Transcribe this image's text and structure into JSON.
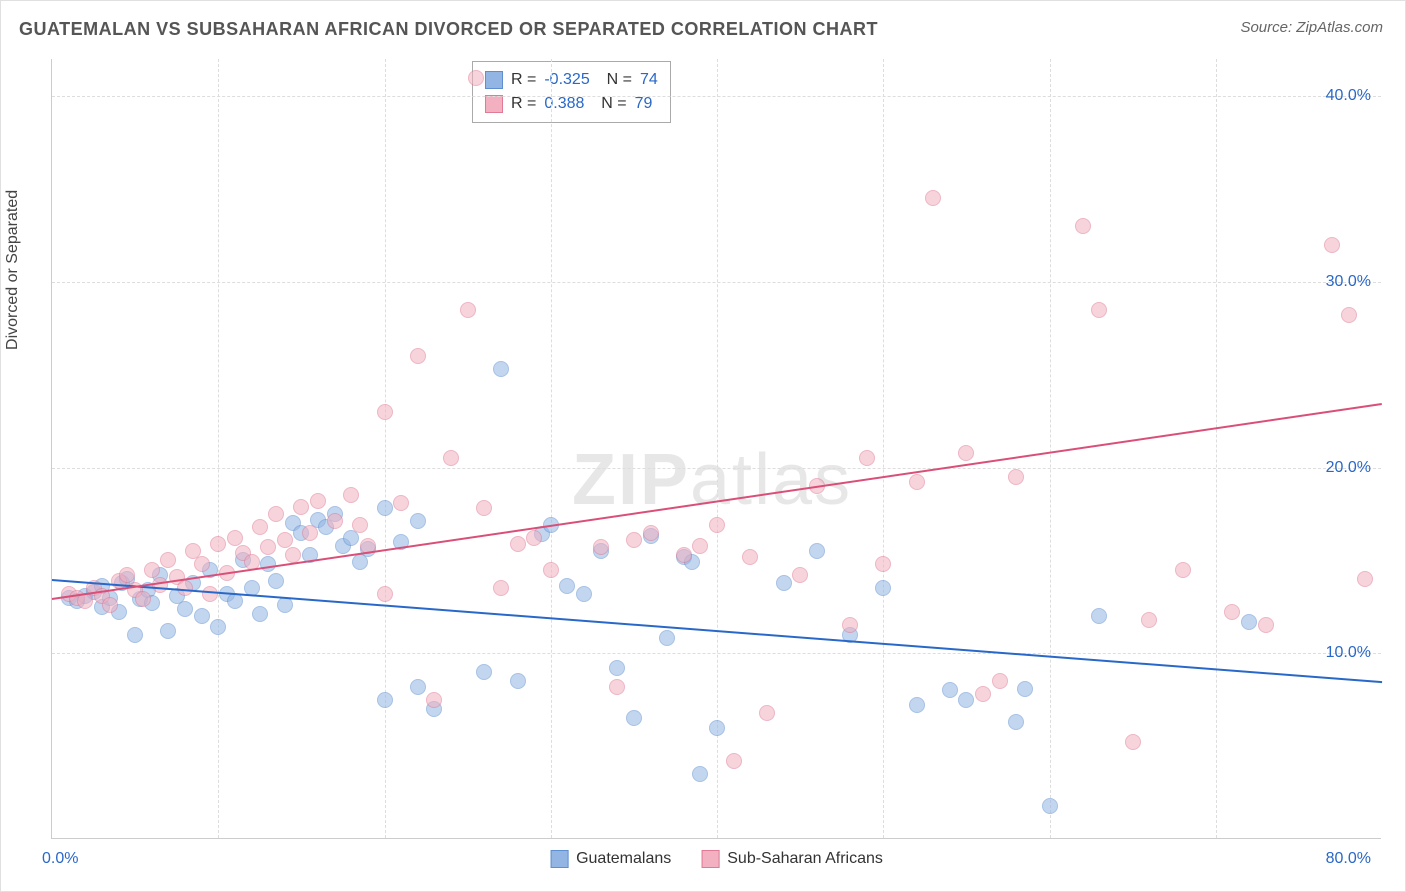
{
  "title": "GUATEMALAN VS SUBSAHARAN AFRICAN DIVORCED OR SEPARATED CORRELATION CHART",
  "source": "Source: ZipAtlas.com",
  "watermark_bold": "ZIP",
  "watermark_light": "atlas",
  "yaxis_title": "Divorced or Separated",
  "chart": {
    "type": "scatter",
    "xlim": [
      0,
      80
    ],
    "ylim": [
      0,
      42
    ],
    "yticks": [
      10,
      20,
      30,
      40
    ],
    "ytick_labels": [
      "10.0%",
      "20.0%",
      "30.0%",
      "40.0%"
    ],
    "xtick_start": "0.0%",
    "xtick_end": "80.0%",
    "xgrid_positions": [
      10,
      20,
      30,
      40,
      50,
      60,
      70
    ],
    "background_color": "#ffffff",
    "grid_color": "#dddddd",
    "axis_color": "#cccccc",
    "tick_label_color": "#2968c8",
    "marker_size": 16,
    "marker_opacity": 0.55,
    "series": [
      {
        "name": "Guatemalans",
        "fill_color": "#93b5e3",
        "stroke_color": "#5f8fd0",
        "trend_color": "#2968c8",
        "trend_width": 2,
        "R": "-0.325",
        "N": "74",
        "trend": {
          "x1": 0,
          "y1": 14.0,
          "x2": 80,
          "y2": 8.5
        },
        "points": [
          [
            1,
            13
          ],
          [
            1.5,
            12.8
          ],
          [
            2,
            13.1
          ],
          [
            2.5,
            13.3
          ],
          [
            3,
            12.5
          ],
          [
            3,
            13.6
          ],
          [
            3.5,
            13
          ],
          [
            4,
            12.2
          ],
          [
            4.2,
            13.8
          ],
          [
            4.5,
            14
          ],
          [
            5,
            11
          ],
          [
            5.3,
            12.9
          ],
          [
            5.8,
            13.4
          ],
          [
            6,
            12.7
          ],
          [
            6.5,
            14.2
          ],
          [
            7,
            11.2
          ],
          [
            7.5,
            13.1
          ],
          [
            8,
            12.4
          ],
          [
            8.5,
            13.8
          ],
          [
            9,
            12
          ],
          [
            9.5,
            14.5
          ],
          [
            10,
            11.4
          ],
          [
            10.5,
            13.2
          ],
          [
            11,
            12.8
          ],
          [
            11.5,
            15
          ],
          [
            12,
            13.5
          ],
          [
            12.5,
            12.1
          ],
          [
            13,
            14.8
          ],
          [
            13.5,
            13.9
          ],
          [
            14,
            12.6
          ],
          [
            14.5,
            17
          ],
          [
            15,
            16.5
          ],
          [
            15.5,
            15.3
          ],
          [
            16,
            17.2
          ],
          [
            16.5,
            16.8
          ],
          [
            17,
            17.5
          ],
          [
            17.5,
            15.8
          ],
          [
            18,
            16.2
          ],
          [
            18.5,
            14.9
          ],
          [
            19,
            15.6
          ],
          [
            20,
            17.8
          ],
          [
            20,
            7.5
          ],
          [
            21,
            16
          ],
          [
            22,
            17.1
          ],
          [
            22,
            8.2
          ],
          [
            23,
            7
          ],
          [
            26,
            9
          ],
          [
            27,
            25.3
          ],
          [
            28,
            8.5
          ],
          [
            29.5,
            16.4
          ],
          [
            30,
            16.9
          ],
          [
            31,
            13.6
          ],
          [
            32,
            13.2
          ],
          [
            33,
            15.5
          ],
          [
            34,
            9.2
          ],
          [
            35,
            6.5
          ],
          [
            36,
            16.3
          ],
          [
            37,
            10.8
          ],
          [
            38,
            15.2
          ],
          [
            38.5,
            14.9
          ],
          [
            39,
            3.5
          ],
          [
            40,
            6
          ],
          [
            44,
            13.8
          ],
          [
            46,
            15.5
          ],
          [
            48,
            11
          ],
          [
            50,
            13.5
          ],
          [
            52,
            7.2
          ],
          [
            54,
            8
          ],
          [
            55,
            7.5
          ],
          [
            58,
            6.3
          ],
          [
            58.5,
            8.1
          ],
          [
            60,
            1.8
          ],
          [
            63,
            12
          ],
          [
            72,
            11.7
          ]
        ]
      },
      {
        "name": "Sub-Saharan Africans",
        "fill_color": "#f2b0c0",
        "stroke_color": "#e07a95",
        "trend_color": "#d94f78",
        "trend_width": 2,
        "R": "0.388",
        "N": "79",
        "trend": {
          "x1": 0,
          "y1": 13.0,
          "x2": 80,
          "y2": 23.5
        },
        "points": [
          [
            1,
            13.2
          ],
          [
            1.5,
            13
          ],
          [
            2,
            12.8
          ],
          [
            2.5,
            13.5
          ],
          [
            3,
            13.1
          ],
          [
            3.5,
            12.6
          ],
          [
            4,
            13.9
          ],
          [
            4.5,
            14.2
          ],
          [
            5,
            13.4
          ],
          [
            5.5,
            12.9
          ],
          [
            6,
            14.5
          ],
          [
            6.5,
            13.7
          ],
          [
            7,
            15
          ],
          [
            7.5,
            14.1
          ],
          [
            8,
            13.5
          ],
          [
            8.5,
            15.5
          ],
          [
            9,
            14.8
          ],
          [
            9.5,
            13.2
          ],
          [
            10,
            15.9
          ],
          [
            10.5,
            14.3
          ],
          [
            11,
            16.2
          ],
          [
            11.5,
            15.4
          ],
          [
            12,
            14.9
          ],
          [
            12.5,
            16.8
          ],
          [
            13,
            15.7
          ],
          [
            13.5,
            17.5
          ],
          [
            14,
            16.1
          ],
          [
            14.5,
            15.3
          ],
          [
            15,
            17.9
          ],
          [
            15.5,
            16.5
          ],
          [
            16,
            18.2
          ],
          [
            17,
            17.1
          ],
          [
            18,
            18.5
          ],
          [
            18.5,
            16.9
          ],
          [
            19,
            15.8
          ],
          [
            20,
            13.2
          ],
          [
            20,
            23
          ],
          [
            21,
            18.1
          ],
          [
            22,
            26
          ],
          [
            23,
            7.5
          ],
          [
            24,
            20.5
          ],
          [
            25,
            28.5
          ],
          [
            25.5,
            41
          ],
          [
            26,
            17.8
          ],
          [
            27,
            13.5
          ],
          [
            28,
            15.9
          ],
          [
            29,
            16.2
          ],
          [
            30,
            14.5
          ],
          [
            33,
            15.7
          ],
          [
            34,
            8.2
          ],
          [
            35,
            16.1
          ],
          [
            36,
            16.5
          ],
          [
            38,
            15.3
          ],
          [
            39,
            15.8
          ],
          [
            40,
            16.9
          ],
          [
            41,
            4.2
          ],
          [
            42,
            15.2
          ],
          [
            43,
            6.8
          ],
          [
            45,
            14.2
          ],
          [
            46,
            19
          ],
          [
            48,
            11.5
          ],
          [
            49,
            20.5
          ],
          [
            50,
            14.8
          ],
          [
            52,
            19.2
          ],
          [
            53,
            34.5
          ],
          [
            55,
            20.8
          ],
          [
            56,
            7.8
          ],
          [
            57,
            8.5
          ],
          [
            58,
            19.5
          ],
          [
            62,
            33
          ],
          [
            63,
            28.5
          ],
          [
            65,
            5.2
          ],
          [
            66,
            11.8
          ],
          [
            68,
            14.5
          ],
          [
            71,
            12.2
          ],
          [
            73,
            11.5
          ],
          [
            77,
            32
          ],
          [
            78,
            28.2
          ],
          [
            79,
            14
          ]
        ]
      }
    ]
  },
  "legend": {
    "items": [
      {
        "label": "Guatemalans",
        "fill": "#93b5e3",
        "stroke": "#5f8fd0"
      },
      {
        "label": "Sub-Saharan Africans",
        "fill": "#f2b0c0",
        "stroke": "#e07a95"
      }
    ]
  }
}
